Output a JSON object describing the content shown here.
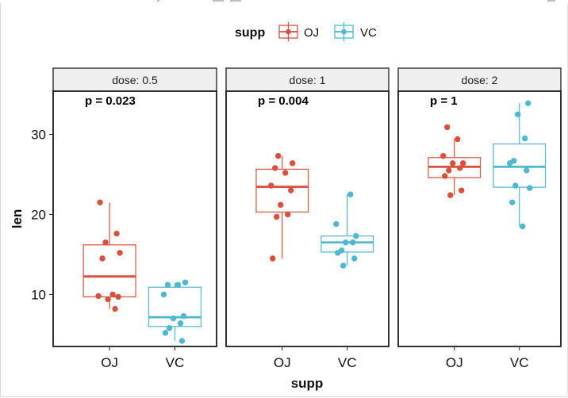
{
  "chart_data": {
    "type": "boxplot",
    "xlabel": "supp",
    "ylabel": "len",
    "ylim": [
      3.5,
      35.4
    ],
    "yticks": [
      10,
      20,
      30
    ],
    "facet_prefix": "dose: ",
    "legend": {
      "title": "supp",
      "position": "top",
      "entries": [
        {
          "name": "OJ",
          "color": "#D9503F"
        },
        {
          "name": "VC",
          "color": "#4DB8CF"
        }
      ]
    },
    "panels": [
      {
        "dose": "0.5",
        "strip": "dose: 0.5",
        "pvalue": "p = 0.023",
        "groups": [
          {
            "supp": "OJ",
            "q1": 9.7,
            "median": 12.25,
            "q3": 16.2,
            "lower_whisker": 8.2,
            "upper_whisker": 21.5,
            "points": [
              21.5,
              17.6,
              16.5,
              15.2,
              14.5,
              10.0,
              9.8,
              9.7,
              9.4,
              8.2
            ]
          },
          {
            "supp": "VC",
            "q1": 6.0,
            "median": 7.15,
            "q3": 10.9,
            "lower_whisker": 4.2,
            "upper_whisker": 11.5,
            "points": [
              11.5,
              11.2,
              11.2,
              10.0,
              7.3,
              7.0,
              6.4,
              5.8,
              5.2,
              4.2
            ]
          }
        ]
      },
      {
        "dose": "1",
        "strip": "dose: 1",
        "pvalue": "p = 0.004",
        "groups": [
          {
            "supp": "OJ",
            "q1": 20.3,
            "median": 23.45,
            "q3": 25.65,
            "lower_whisker": 14.5,
            "upper_whisker": 27.3,
            "points": [
              27.3,
              26.4,
              25.8,
              25.2,
              23.6,
              23.0,
              21.2,
              20.0,
              19.7,
              14.5
            ]
          },
          {
            "supp": "VC",
            "q1": 15.3,
            "median": 16.5,
            "q3": 17.3,
            "lower_whisker": 13.6,
            "upper_whisker": 22.5,
            "points": [
              22.5,
              18.8,
              17.3,
              16.5,
              16.5,
              15.5,
              15.2,
              14.5,
              13.6
            ]
          }
        ]
      },
      {
        "dose": "2",
        "strip": "dose: 2",
        "pvalue": "p = 1",
        "groups": [
          {
            "supp": "OJ",
            "q1": 24.6,
            "median": 25.95,
            "q3": 27.1,
            "lower_whisker": 22.4,
            "upper_whisker": 29.4,
            "points": [
              30.9,
              29.4,
              27.3,
              26.4,
              26.4,
              25.8,
              25.5,
              24.8,
              23.0,
              22.4
            ]
          },
          {
            "supp": "VC",
            "q1": 23.4,
            "median": 25.95,
            "q3": 28.8,
            "lower_whisker": 18.5,
            "upper_whisker": 33.9,
            "points": [
              33.9,
              32.5,
              29.5,
              26.7,
              26.4,
              25.5,
              23.6,
              23.3,
              21.5,
              18.5
            ]
          }
        ]
      }
    ]
  }
}
